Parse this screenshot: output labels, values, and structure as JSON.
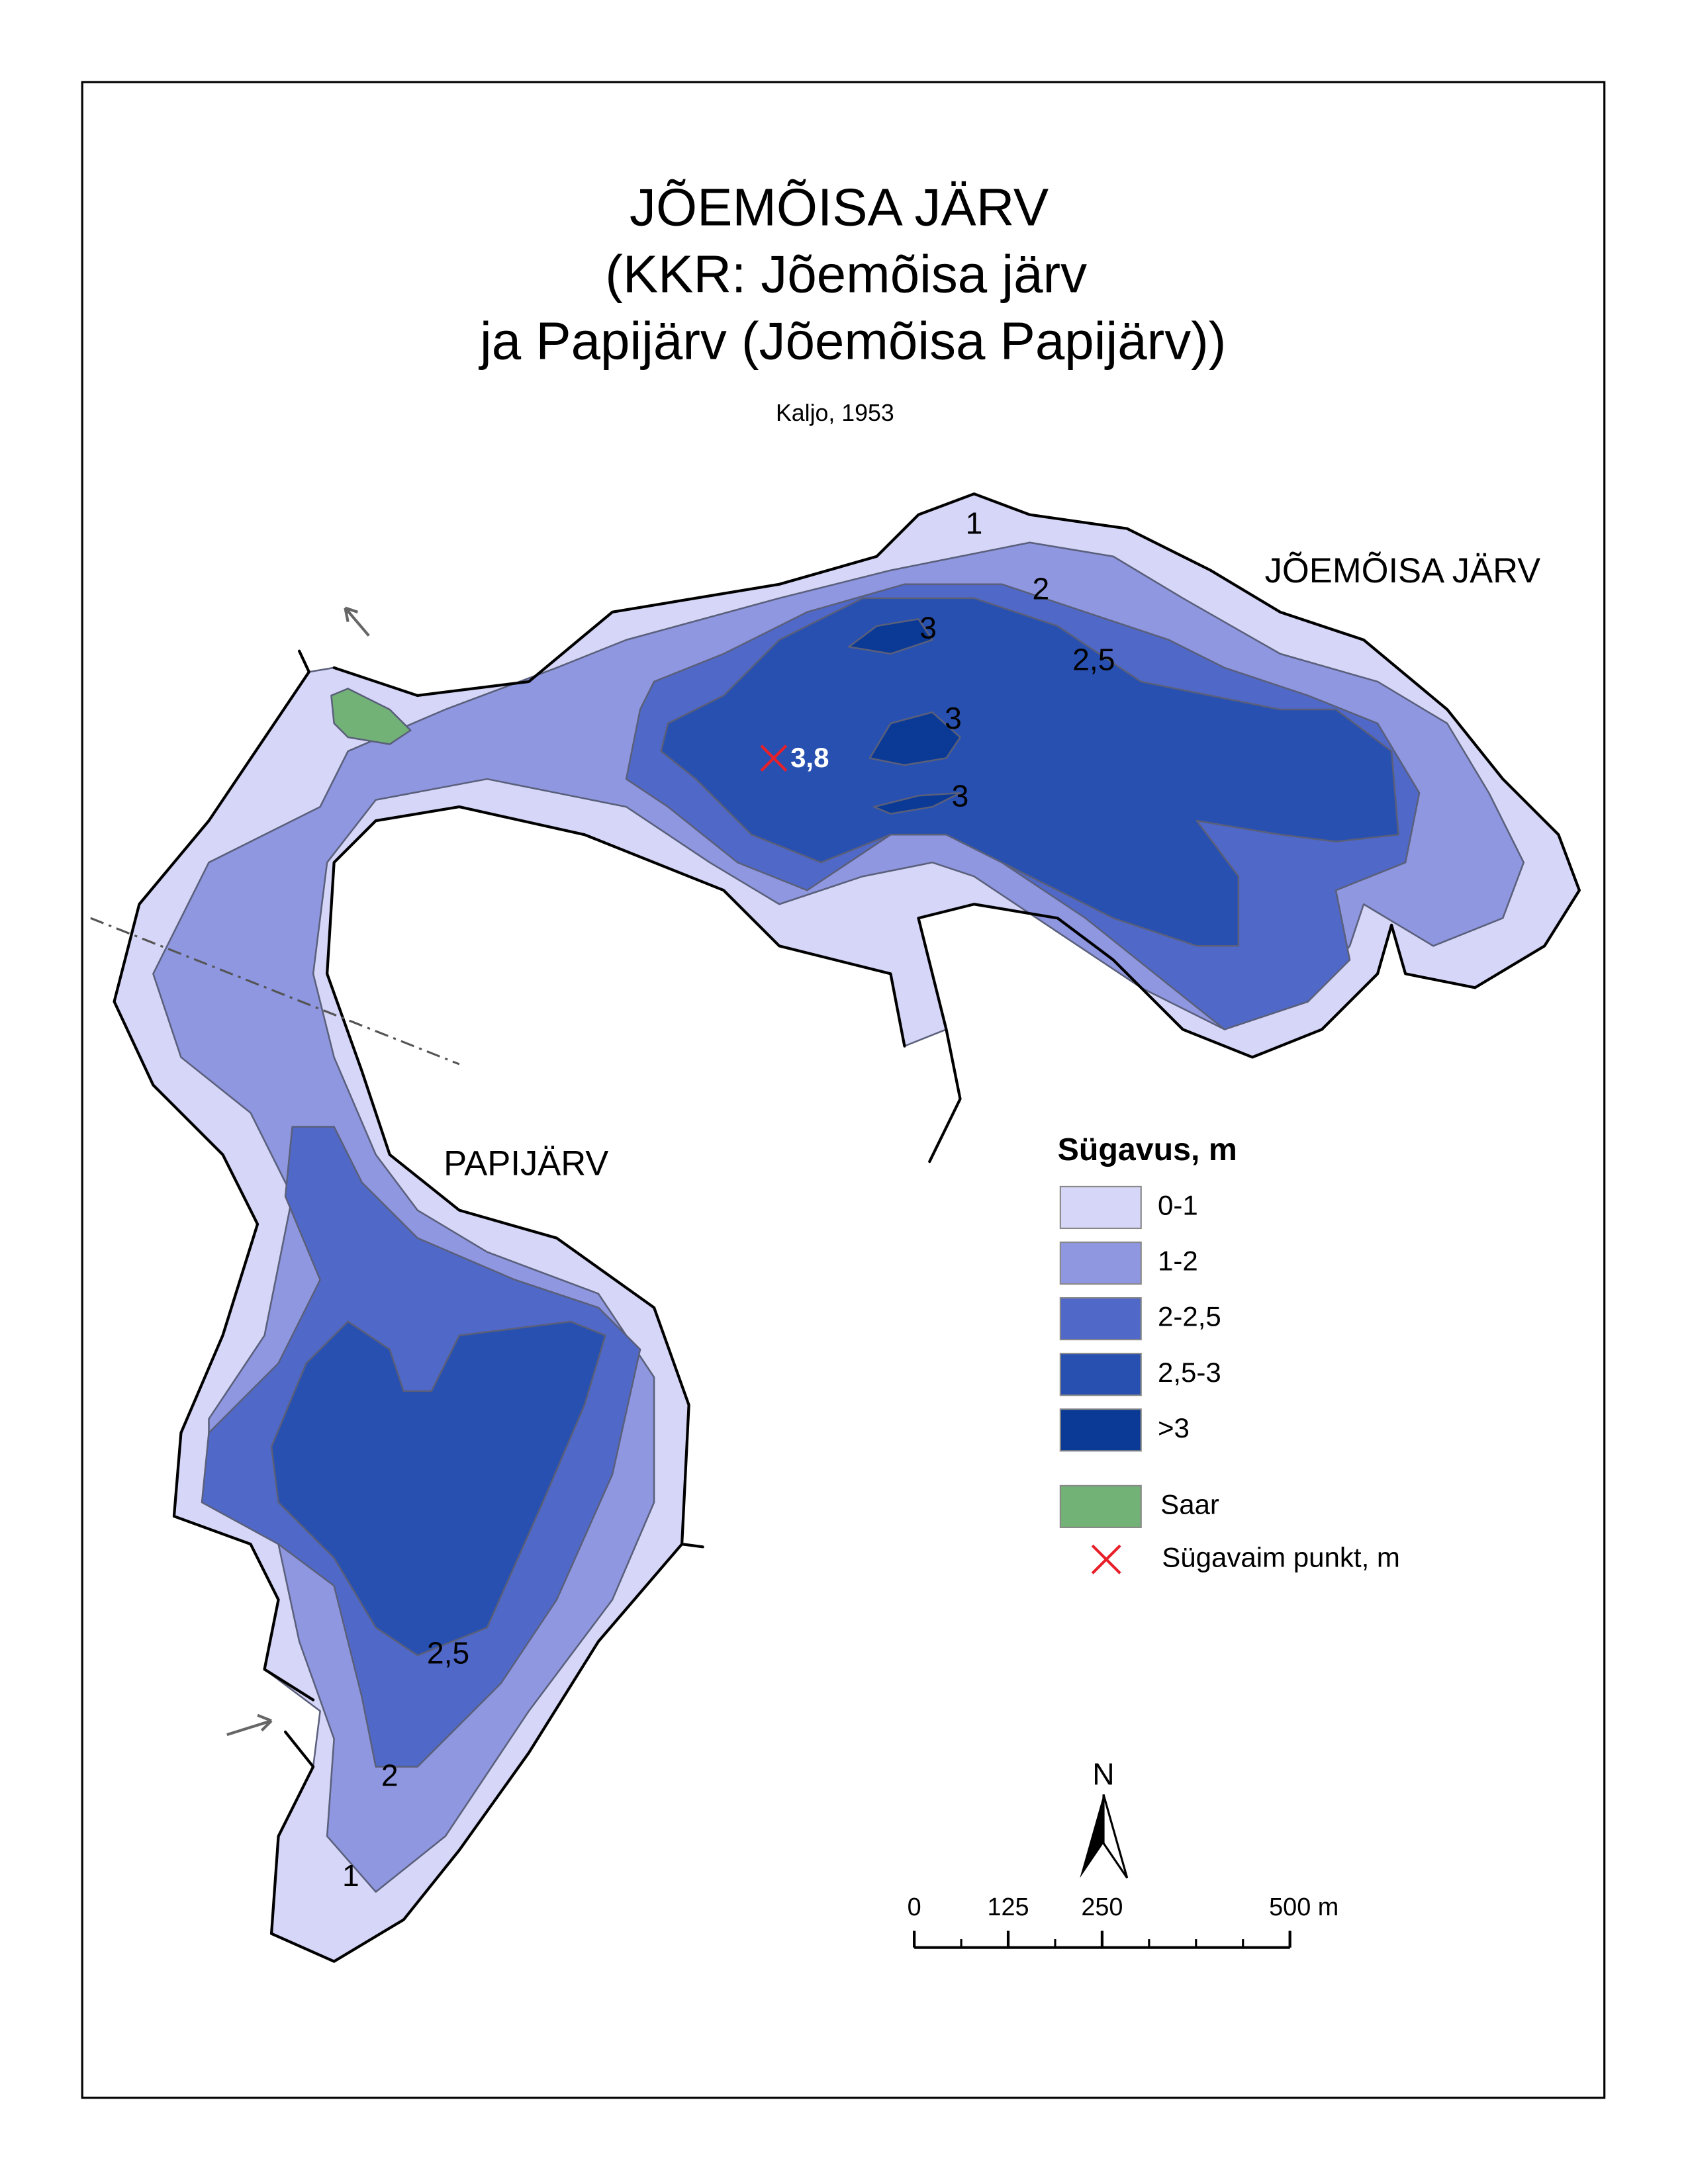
{
  "title": [
    "JÕEMÕISA JÄRV",
    "(KKR: Jõemõisa järv",
    "ja Papijärv (Jõemõisa Papijärv))"
  ],
  "source": "Kaljo, 1953",
  "lake_labels": [
    "JÕEMÕISA JÄRV",
    "PAPIJÄRV"
  ],
  "depth_labels": [
    "1",
    "2",
    "2,5",
    "3",
    "3",
    "3",
    "2,5",
    "2",
    "1"
  ],
  "deepest_point": "3,8",
  "legend": {
    "title": "Sügavus, m",
    "items": [
      {
        "label": "0-1",
        "color": "#d6d6f8"
      },
      {
        "label": "1-2",
        "color": "#8e97e0"
      },
      {
        "label": "2-2,5",
        "color": "#5068c8"
      },
      {
        "label": "2,5-3",
        "color": "#2850b0"
      },
      {
        "label": ">3",
        "color": "#0a3a96"
      }
    ],
    "island": {
      "label": "Saar",
      "color": "#72b276"
    },
    "deepest": {
      "label": "Sügavaim punkt, m",
      "color": "#e8202a"
    }
  },
  "north": "N",
  "scale_bar": {
    "ticks": [
      0,
      125,
      250,
      {
        "value": 500,
        "label": "500 m"
      }
    ]
  }
}
